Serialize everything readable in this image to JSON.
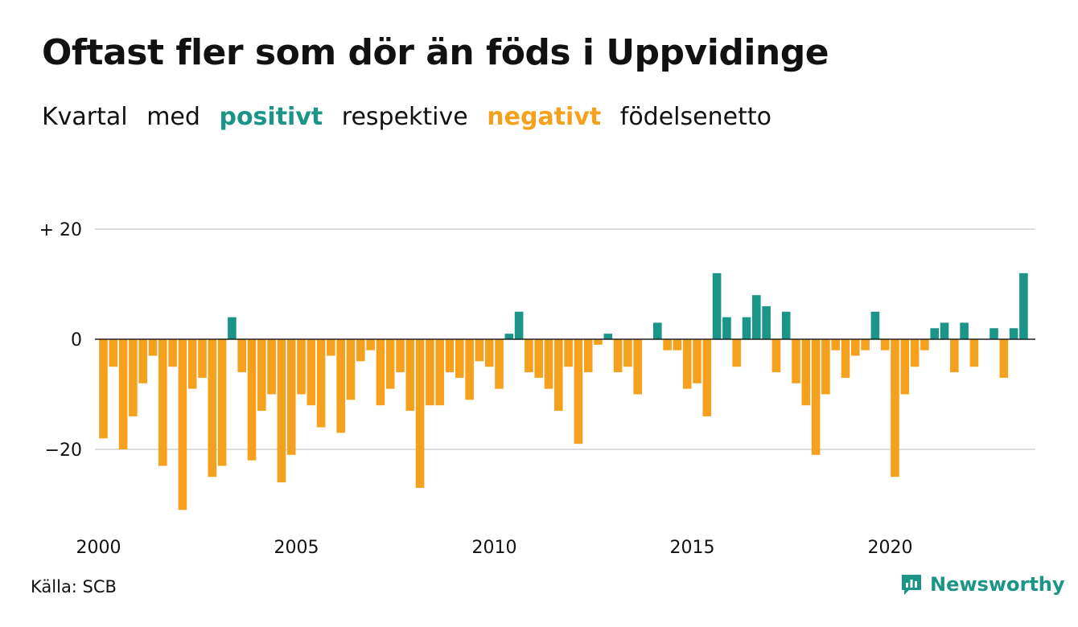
{
  "title": "Oftast fler som dör än föds i Uppvidinge",
  "subtitle": {
    "part1": "Kvartal",
    "part2": "med",
    "positive_word": "positivt",
    "part3": "respektive",
    "negative_word": "negativt",
    "part4": "födelsenetto"
  },
  "source": "Källa: SCB",
  "brand": {
    "name": "Newsworthy",
    "icon": "newsworthy-logo-icon"
  },
  "colors": {
    "positive": "#1a9588",
    "negative": "#f5a11d",
    "grid": "#dddddd",
    "zero": "#222222",
    "brand": "#1a9588"
  },
  "chart_data": {
    "type": "bar",
    "x_start": "2000 Q1",
    "frequency": "quarterly",
    "xticks": [
      {
        "label": "2000",
        "index": 0
      },
      {
        "label": "2005",
        "index": 20
      },
      {
        "label": "2010",
        "index": 40
      },
      {
        "label": "2015",
        "index": 60
      },
      {
        "label": "2020",
        "index": 80
      }
    ],
    "yticks": [
      {
        "label": "+ 20",
        "value": 20
      },
      {
        "label": "0",
        "value": 0
      },
      {
        "label": "−20",
        "value": -20
      }
    ],
    "ylim": [
      -32,
      20
    ],
    "grid": true,
    "values": [
      -18,
      -5,
      -20,
      -14,
      -8,
      -3,
      -23,
      -5,
      -31,
      -9,
      -7,
      -25,
      -23,
      4,
      -6,
      -22,
      -13,
      -10,
      -26,
      -21,
      -10,
      -12,
      -16,
      -3,
      -17,
      -11,
      -4,
      -2,
      -12,
      -9,
      -6,
      -13,
      -27,
      -12,
      -12,
      -6,
      -7,
      -11,
      -4,
      -5,
      -9,
      1,
      5,
      -6,
      -7,
      -9,
      -13,
      -5,
      -19,
      -6,
      -1,
      1,
      -6,
      -5,
      -10,
      0,
      3,
      -2,
      -2,
      -9,
      -8,
      -14,
      12,
      4,
      -5,
      4,
      8,
      6,
      -6,
      5,
      -8,
      -12,
      -21,
      -10,
      -2,
      -7,
      -3,
      -2,
      5,
      -2,
      -25,
      -10,
      -5,
      -2,
      2,
      3,
      -6,
      3,
      -5,
      0,
      2,
      -7,
      2,
      12
    ]
  }
}
